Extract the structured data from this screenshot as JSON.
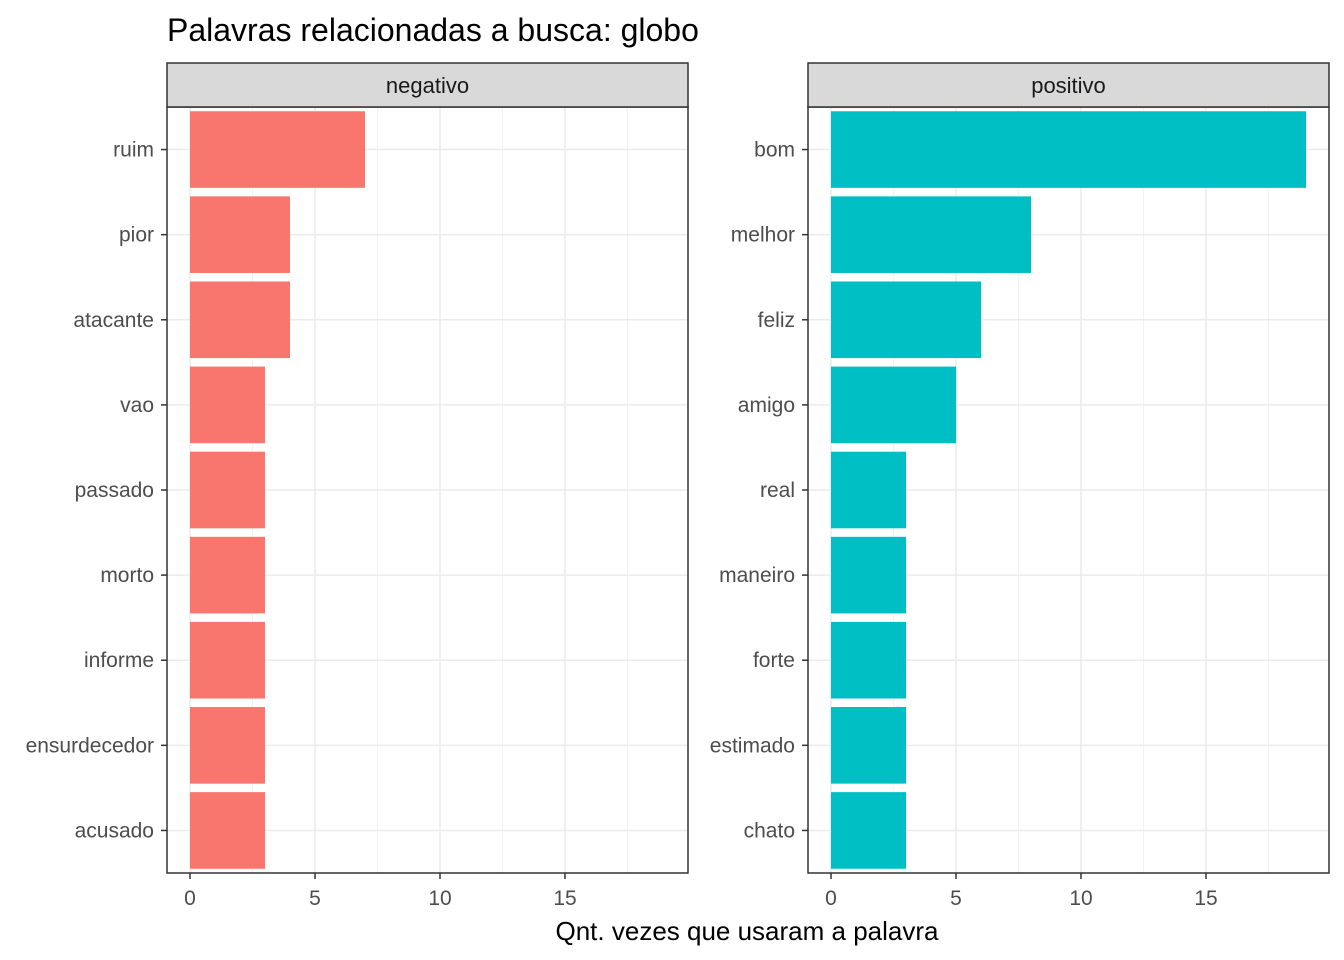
{
  "chart_data": {
    "type": "bar",
    "orientation": "horizontal",
    "title": "Palavras relacionadas a busca: globo",
    "xlabel": "Qnt. vezes que usaram a palavra",
    "ylabel": "",
    "xlim": [
      0,
      19
    ],
    "x_ticks": [
      0,
      5,
      10,
      15
    ],
    "grid": true,
    "legend": "none",
    "panels": [
      {
        "name": "negativo",
        "color": "#F8766D",
        "categories": [
          "ruim",
          "pior",
          "atacante",
          "vao",
          "passado",
          "morto",
          "informe",
          "ensurdecedor",
          "acusado"
        ],
        "values": [
          7,
          4,
          4,
          3,
          3,
          3,
          3,
          3,
          3
        ]
      },
      {
        "name": "positivo",
        "color": "#00BFC4",
        "categories": [
          "bom",
          "melhor",
          "feliz",
          "amigo",
          "real",
          "maneiro",
          "forte",
          "estimado",
          "chato"
        ],
        "values": [
          19,
          8,
          6,
          5,
          3,
          3,
          3,
          3,
          3
        ]
      }
    ]
  }
}
